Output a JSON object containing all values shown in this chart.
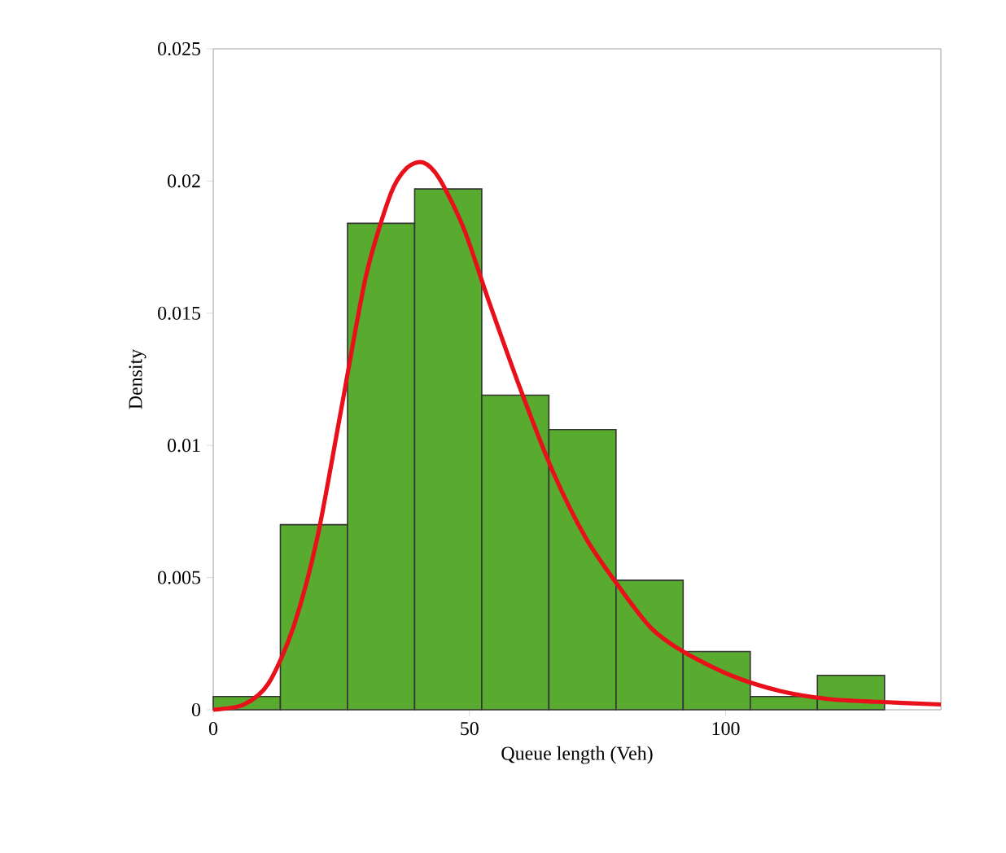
{
  "chart_data": {
    "type": "histogram",
    "xlabel": "Queue length (Veh)",
    "ylabel": "Density",
    "bins": [
      0,
      13.1,
      26.2,
      39.3,
      52.4,
      65.5,
      78.6,
      91.7,
      104.8,
      117.9,
      131
    ],
    "values": [
      0.0005,
      0.007,
      0.0184,
      0.0197,
      0.0119,
      0.0106,
      0.0049,
      0.0022,
      0.0005,
      0.0013
    ],
    "color": "#58ab2f",
    "series": [
      {
        "type": "line",
        "color": "#e8101a",
        "x": [
          0,
          6,
          10.8,
          15.6,
          20.3,
          25.1,
          29.8,
          34.6,
          37.8,
          41,
          44.1,
          48.9,
          53.7,
          60,
          66.3,
          72.7,
          79,
          85.4,
          91.7,
          101,
          110.8,
          120.3,
          129.8,
          142
        ],
        "values": [
          0,
          0.0002,
          0.001,
          0.0031,
          0.0065,
          0.0115,
          0.0164,
          0.0195,
          0.0205,
          0.0207,
          0.0201,
          0.0182,
          0.0155,
          0.0121,
          0.009,
          0.0065,
          0.0047,
          0.0031,
          0.0022,
          0.0013,
          0.0007,
          0.0004,
          0.0003,
          0.0002
        ]
      }
    ],
    "xlim": [
      0,
      142
    ],
    "ylim": [
      0,
      0.025
    ],
    "xticks": [
      0,
      50,
      100
    ],
    "yticks": [
      0,
      0.005,
      0.01,
      0.015,
      0.02,
      0.025
    ]
  }
}
